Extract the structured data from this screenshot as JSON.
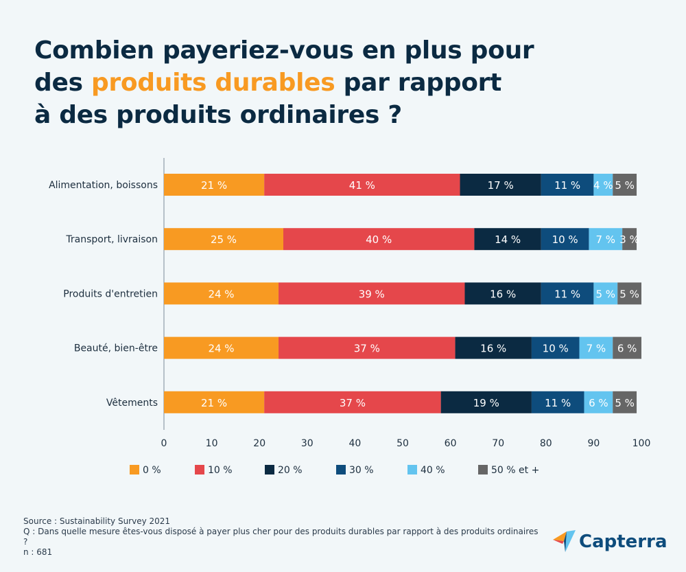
{
  "title": {
    "line1": "Combien payeriez-vous en plus pour",
    "line2_pre": "des ",
    "line2_highlight": "produits durables",
    "line2_post": " par rapport",
    "line3": "à des produits ordinaires ?"
  },
  "colors": {
    "title": "#0b2a42",
    "highlight": "#f89a22"
  },
  "chart_data": {
    "type": "bar",
    "orientation": "horizontal",
    "stacked": true,
    "categories": [
      "Alimentation, boissons",
      "Transport, livraison",
      "Produits d'entretien",
      "Beauté, bien-être",
      "Vêtements"
    ],
    "series": [
      {
        "name": "0 %",
        "color": "#f89a22",
        "values": [
          21,
          25,
          24,
          24,
          21
        ]
      },
      {
        "name": "10 %",
        "color": "#e5474b",
        "values": [
          41,
          40,
          39,
          37,
          37
        ]
      },
      {
        "name": "20 %",
        "color": "#0b2a42",
        "values": [
          17,
          14,
          16,
          16,
          19
        ]
      },
      {
        "name": "30 %",
        "color": "#0e4c7c",
        "values": [
          11,
          10,
          11,
          10,
          11
        ]
      },
      {
        "name": "40 %",
        "color": "#63c4ef",
        "values": [
          4,
          7,
          5,
          7,
          6
        ]
      },
      {
        "name": "50 % et +",
        "color": "#666666",
        "values": [
          5,
          3,
          5,
          6,
          5
        ]
      }
    ],
    "xlim": [
      0,
      100
    ],
    "xticks": [
      0,
      10,
      20,
      30,
      40,
      50,
      60,
      70,
      80,
      90,
      100
    ],
    "value_suffix": " %",
    "legend": "bottom",
    "grid": false
  },
  "source": {
    "line1": "Source : Sustainability Survey 2021",
    "line2": "Q : Dans quelle mesure êtes-vous disposé à payer plus cher pour des produits durables par rapport à des produits ordinaires ?",
    "line3": "n : 681"
  },
  "logo": {
    "text": "Capterra"
  }
}
